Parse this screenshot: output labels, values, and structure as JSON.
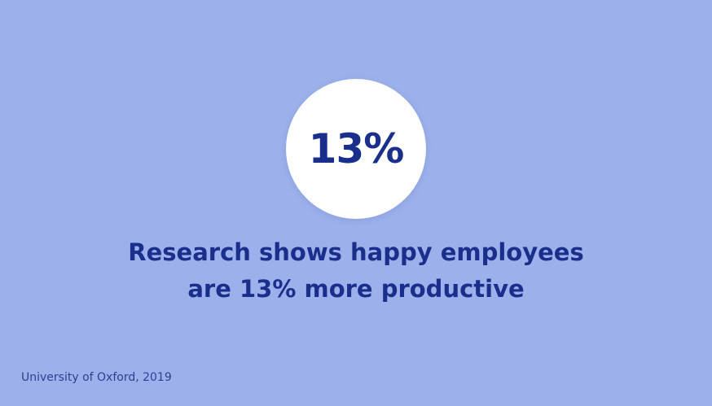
{
  "stat": "13%",
  "headline": [
    "Research shows happy employees",
    "are 13% more productive"
  ],
  "source": "University of Oxford, 2019"
}
